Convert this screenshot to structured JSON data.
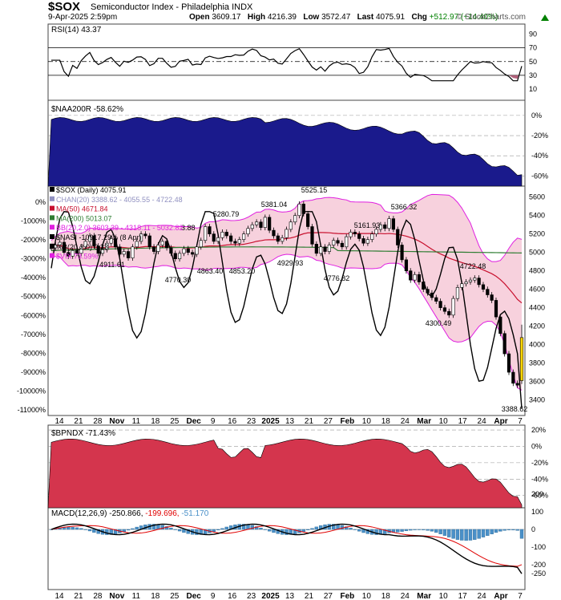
{
  "header": {
    "symbol": "$SOX",
    "name": "Semiconductor Index - Philadelphia INDX",
    "date": "9-Apr-2025 2:59pm",
    "open_label": "Open",
    "open": "3609.17",
    "high_label": "High",
    "high": "4216.39",
    "low_label": "Low",
    "low": "3572.47",
    "last_label": "Last",
    "last": "4075.91",
    "chg_label": "Chg",
    "chg": "+512.97 (+14.40%)",
    "watermark": "© StockCharts.com"
  },
  "colors": {
    "price_up": "#ffffff",
    "price_down": "#000000",
    "last_candle": "#ffd700",
    "ma50": "#c8102e",
    "ma200": "#2e7d32",
    "bb": "#e020e0",
    "chan": "#9090c0",
    "nasi": "#000000",
    "naa200r": "#1a1a8c",
    "bpndx": "#d4354d",
    "macd": "#000000",
    "signal": "#e00000",
    "hist": "#4a90c8",
    "rsi": "#000000"
  },
  "panels": {
    "rsi": {
      "legend": "RSI(14) 43.37",
      "ticks": [
        "90",
        "70",
        "50",
        "30",
        "10"
      ],
      "value": 43.37
    },
    "naa200r": {
      "legend": "$NAA200R -58.62%",
      "ticks": [
        "0%",
        "-20%",
        "-40%",
        "-60%"
      ]
    },
    "main": {
      "legends": [
        "$SOX (Daily) 4075.91",
        "CHAN(20) 3388.62 - 4055.55 - 4722.48",
        "MA(50) 4671.84",
        "MA(200) 5013.07",
        "BB(20,2.0) 3603.39 - 4318.11 - 5032.82",
        "$NASI -10917.29% (8 Apr)",
        "%B(20,2.0) 0.33",
        "$VIX 73.59%"
      ],
      "right_ticks": [
        "5600",
        "5400",
        "5200",
        "5000",
        "4800",
        "4600",
        "4400",
        "4200",
        "4000",
        "3800",
        "3600",
        "3400"
      ],
      "left_ticks": [
        "0%",
        "-1000%",
        "-2000%",
        "-3000%",
        "-4000%",
        "-5000%",
        "-6000%",
        "-7000%",
        "-8000%",
        "-9000%",
        "-10000%",
        "-11000%"
      ],
      "annotations": [
        "4911.61",
        "4770.30",
        "4863.40",
        "4853.20",
        "5280.79",
        "5381.04",
        "4929.93",
        "5525.15",
        "4776.82",
        "5161.93",
        "5366.32",
        "4300.49",
        "4722.48",
        "3388.62"
      ],
      "side_note": "3.88"
    },
    "bpndx": {
      "legend": "$BPNDX -71.43%",
      "ticks": [
        "20%",
        "0%",
        "-20%",
        "-40%",
        "-60%"
      ]
    },
    "macd": {
      "legend_name": "MACD(12,26,9)",
      "macd": "-250.866",
      "signal": "-199.696",
      "hist": "-51.170",
      "ticks": [
        "200",
        "100",
        "0",
        "-100",
        "-200",
        "-250"
      ]
    }
  },
  "x_axis_labels": [
    "14",
    "21",
    "28",
    "Nov",
    "11",
    "18",
    "25",
    "Dec",
    "9",
    "16",
    "23",
    "2025",
    "13",
    "21",
    "27",
    "Feb",
    "10",
    "18",
    "24",
    "Mar",
    "10",
    "17",
    "24",
    "Apr",
    "7"
  ],
  "chart_data": {
    "type": "line",
    "title": "$SOX Semiconductor Index - Philadelphia INDX",
    "price": {
      "close": [
        5050,
        5080,
        5110,
        5000,
        4960,
        5020,
        4990,
        5060,
        5120,
        5180,
        5070,
        4990,
        5030,
        5100,
        5150,
        5060,
        4980,
        5010,
        4940,
        5060,
        5120,
        5200,
        5180,
        5060,
        5010,
        5080,
        5120,
        5050,
        4990,
        4930,
        4990,
        5040,
        5000,
        4980,
        5060,
        5130,
        5280,
        5200,
        5120,
        5160,
        5220,
        5180,
        5120,
        5100,
        5140,
        5200,
        5260,
        5300,
        5330,
        5270,
        5381,
        5240,
        5180,
        5120,
        5160,
        5250,
        5330,
        5400,
        5525,
        5420,
        5280,
        5090,
        4990,
        5060,
        5010,
        5080,
        5130,
        5100,
        5060,
        5170,
        5220,
        5200,
        5150,
        5100,
        5140,
        5200,
        5250,
        5300,
        5260,
        5366,
        5250,
        5080,
        4920,
        4800,
        4700,
        4760,
        4680,
        4600,
        4560,
        4510,
        4470,
        4400,
        4360,
        4320,
        4500,
        4620,
        4660,
        4680,
        4700,
        4722,
        4650,
        4600,
        4540,
        4480,
        4300,
        4120,
        3900,
        3700,
        3580,
        3560,
        4075.91
      ],
      "last": 4075.91,
      "open": 3609.17,
      "high": 4216.39,
      "low": 3572.47
    },
    "ma50_last": 4671.84,
    "ma200_last": 5013.07,
    "bb": [
      3603.39,
      4318.11,
      5032.82
    ],
    "chan": [
      3388.62,
      4055.55,
      4722.48
    ],
    "rsi_last": 43.37,
    "naa200r_last": -58.62,
    "nasi_last": -10917.29,
    "bpndx_last": -71.43,
    "macd_last": -250.866,
    "signal_last": -199.696,
    "hist_last": -51.17,
    "y_price_range": [
      3300,
      5650
    ]
  }
}
